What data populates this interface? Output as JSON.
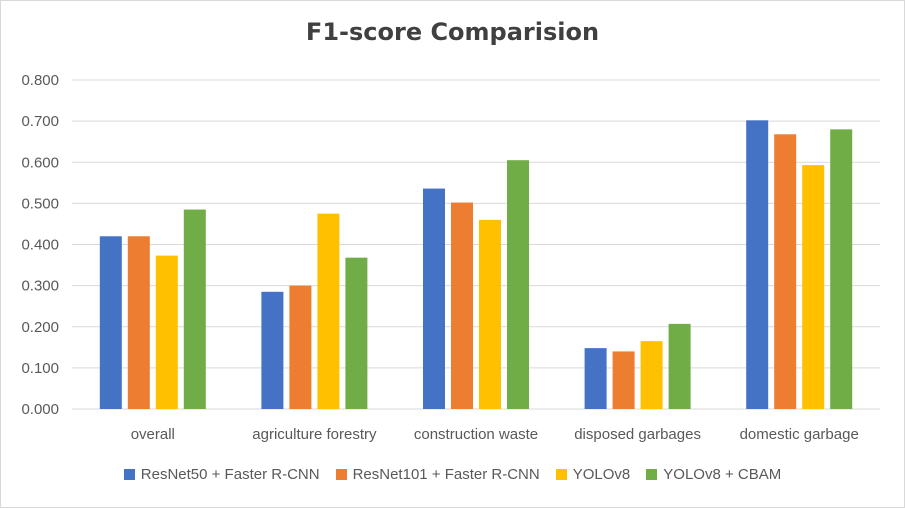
{
  "chart_data": {
    "type": "bar",
    "title": "F1-score Comparision",
    "categories": [
      "overall",
      "agriculture forestry",
      "construction waste",
      "disposed garbages",
      "domestic garbage"
    ],
    "series": [
      {
        "name": "ResNet50 + Faster R-CNN",
        "color": "#4472c4",
        "values": [
          0.42,
          0.285,
          0.536,
          0.148,
          0.702
        ]
      },
      {
        "name": "ResNet101 + Faster R-CNN",
        "color": "#ed7d31",
        "values": [
          0.42,
          0.3,
          0.502,
          0.14,
          0.668
        ]
      },
      {
        "name": "YOLOv8",
        "color": "#ffc000",
        "values": [
          0.373,
          0.475,
          0.46,
          0.165,
          0.593
        ]
      },
      {
        "name": "YOLOv8 + CBAM",
        "color": "#70ad47",
        "values": [
          0.485,
          0.368,
          0.605,
          0.207,
          0.68
        ]
      }
    ],
    "ylim": [
      0,
      0.8
    ],
    "yticks": [
      "0.000",
      "0.100",
      "0.200",
      "0.300",
      "0.400",
      "0.500",
      "0.600",
      "0.700",
      "0.800"
    ],
    "xlabel": "",
    "ylabel": "",
    "grid": true,
    "legend_position": "bottom"
  }
}
